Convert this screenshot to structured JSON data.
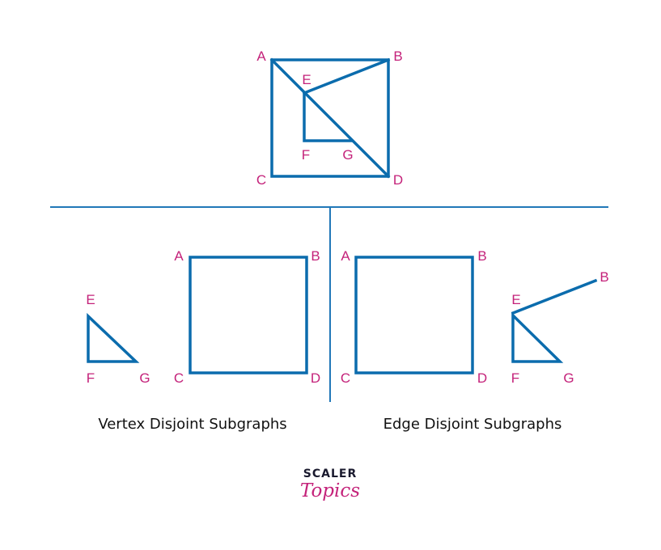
{
  "colors": {
    "edge": "#0b6cad",
    "label": "#c4227a",
    "divider": "#2178b8",
    "caption": "#111111",
    "logo_dark": "#1a1a2e",
    "logo_pink": "#c4227a"
  },
  "graphs": {
    "original": {
      "vertices": [
        "A",
        "B",
        "C",
        "D",
        "E",
        "F",
        "G"
      ]
    },
    "vertex_disjoint": {
      "caption": "Vertex Disjoint Subgraphs",
      "vertices": [
        "E",
        "F",
        "G",
        "A",
        "B",
        "C",
        "D"
      ]
    },
    "edge_disjoint": {
      "caption": "Edge Disjoint Subgraphs",
      "vertices": [
        "A",
        "B",
        "C",
        "D",
        "E",
        "B",
        "F",
        "G"
      ]
    }
  },
  "logo": {
    "top": "SCALER",
    "bottom": "Topics"
  }
}
